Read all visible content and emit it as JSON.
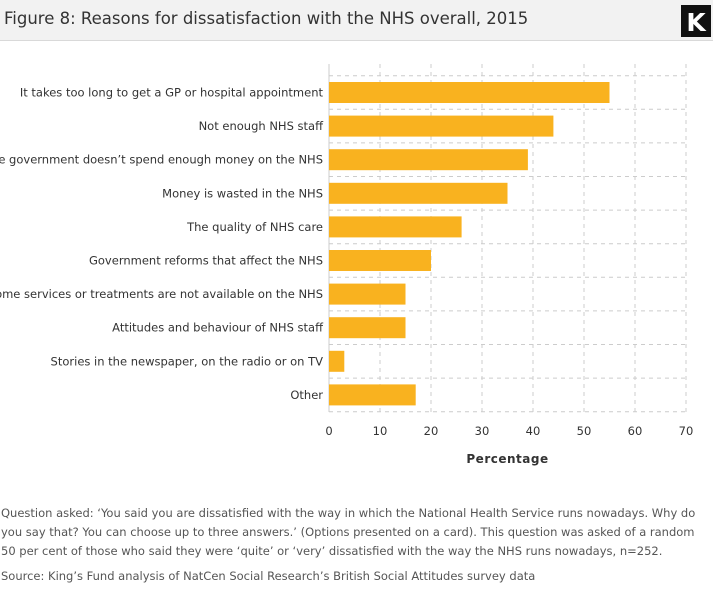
{
  "title": "Figure 8: Reasons for dissatisfaction with the NHS overall, 2015",
  "logo_letter": "K",
  "colors": {
    "bar": "#f9b21f",
    "grid": "#cccccc",
    "header_bg": "#f2f2f2"
  },
  "chart_data": {
    "type": "bar",
    "orientation": "horizontal",
    "categories": [
      "It takes too long to get a GP or hospital appointment",
      "Not enough NHS staff",
      "The government doesn’t spend enough money on the NHS",
      "Money is wasted in the NHS",
      "The quality of NHS care",
      "Government reforms that affect the NHS",
      "Some services or treatments are not available on the NHS",
      "Attitudes and behaviour of NHS staff",
      "Stories in the newspaper, on the radio or on TV",
      "Other"
    ],
    "values": [
      55,
      44,
      39,
      35,
      26,
      20,
      15,
      15,
      3,
      17
    ],
    "xlabel": "Percentage",
    "ylabel": "",
    "xlim": [
      0,
      70
    ],
    "xticks": [
      0,
      10,
      20,
      30,
      40,
      50,
      60,
      70
    ],
    "grid": true,
    "legend": "none"
  },
  "note": "Question asked: ‘You said you are dissatisfied with the way in which the National Health Service runs nowadays. Why do you say that? You can choose up to three answers.’ (Options presented on a card). This question was asked of a random 50 per cent of those who said they were ‘quite’ or ‘very’ dissatisfied with the way the NHS runs nowadays, n=252.",
  "source": "Source: King’s Fund analysis of NatCen Social Research’s British Social Attitudes survey data"
}
